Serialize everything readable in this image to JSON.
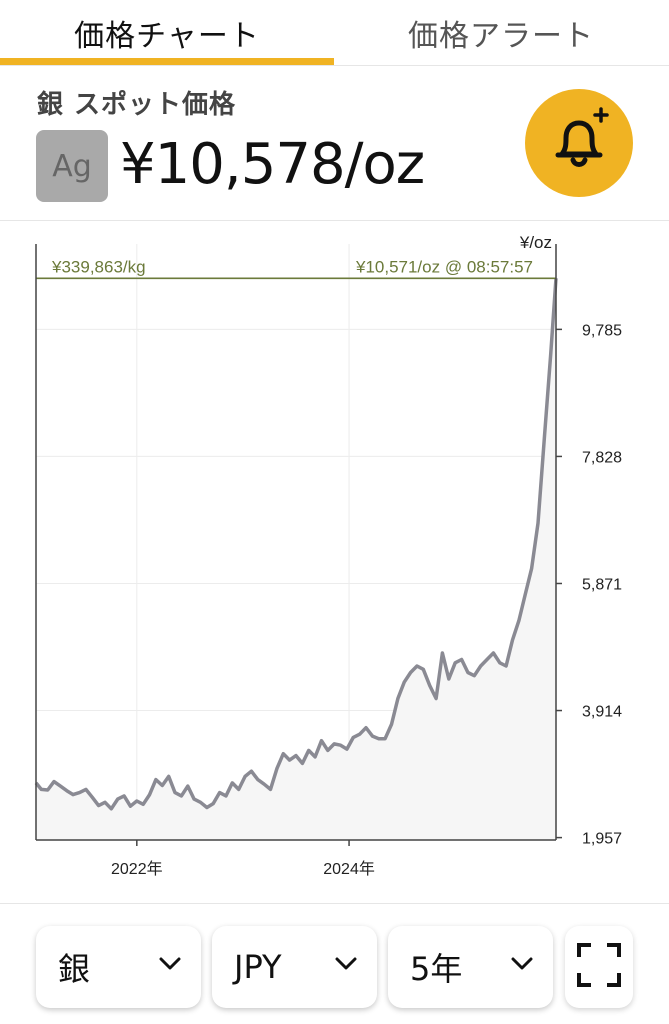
{
  "tabs": [
    {
      "label": "価格チャート",
      "active": true
    },
    {
      "label": "価格アラート",
      "active": false
    }
  ],
  "header": {
    "title": "銀 スポット価格",
    "symbol": "Ag",
    "price": "¥10,578/oz",
    "alert_icon": "bell-plus-icon"
  },
  "colors": {
    "accent": "#f0b323",
    "line": "#8a8a93",
    "ref_line": "#6b7a3a"
  },
  "chart": {
    "unit_label": "¥/oz",
    "ref_left": "¥339,863/kg",
    "ref_right": "¥10,571/oz @ 08:57:57"
  },
  "chart_data": {
    "type": "line",
    "y_ticks": [
      1957,
      3914,
      5871,
      7828,
      9785
    ],
    "y_tick_labels": [
      "1,957",
      "3,914",
      "5,871",
      "7,828",
      "9,785"
    ],
    "x_ticks": [
      2022,
      2024
    ],
    "x_tick_labels": [
      "2022年",
      "2024年"
    ],
    "ylim": [
      1920,
      11100
    ],
    "xlim": [
      2021.05,
      2025.95
    ],
    "reference_value": 10571,
    "grid": true,
    "series": [
      {
        "x": [
          2021.05,
          2021.1,
          2021.16,
          2021.22,
          2021.28,
          2021.34,
          2021.4,
          2021.46,
          2021.52,
          2021.58,
          2021.64,
          2021.7,
          2021.76,
          2021.82,
          2021.88,
          2021.94,
          2022.0,
          2022.06,
          2022.12,
          2022.18,
          2022.24,
          2022.3,
          2022.36,
          2022.42,
          2022.48,
          2022.54,
          2022.6,
          2022.66,
          2022.72,
          2022.78,
          2022.84,
          2022.9,
          2022.96,
          2023.02,
          2023.08,
          2023.14,
          2023.2,
          2023.26,
          2023.32,
          2023.38,
          2023.44,
          2023.5,
          2023.56,
          2023.62,
          2023.68,
          2023.74,
          2023.8,
          2023.86,
          2023.92,
          2023.98,
          2024.04,
          2024.1,
          2024.16,
          2024.22,
          2024.28,
          2024.34,
          2024.4,
          2024.46,
          2024.52,
          2024.58,
          2024.64,
          2024.7,
          2024.76,
          2024.82,
          2024.88,
          2024.94,
          2025.0,
          2025.06,
          2025.12,
          2025.18,
          2025.24,
          2025.3,
          2025.36,
          2025.42,
          2025.48,
          2025.54,
          2025.6,
          2025.66,
          2025.72,
          2025.78,
          2025.84,
          2025.9,
          2025.95
        ],
        "y": [
          2800,
          2700,
          2690,
          2820,
          2750,
          2680,
          2620,
          2650,
          2700,
          2580,
          2450,
          2500,
          2400,
          2550,
          2600,
          2440,
          2520,
          2470,
          2620,
          2850,
          2760,
          2900,
          2650,
          2600,
          2750,
          2550,
          2500,
          2420,
          2480,
          2650,
          2600,
          2800,
          2700,
          2900,
          2980,
          2850,
          2780,
          2700,
          3020,
          3250,
          3150,
          3220,
          3100,
          3300,
          3200,
          3450,
          3300,
          3400,
          3380,
          3320,
          3500,
          3550,
          3650,
          3520,
          3480,
          3480,
          3700,
          4100,
          4350,
          4500,
          4600,
          4550,
          4300,
          4100,
          4800,
          4400,
          4650,
          4700,
          4500,
          4450,
          4600,
          4700,
          4800,
          4650,
          4600,
          5000,
          5300,
          5700,
          6100,
          6800,
          8100,
          9400,
          10571
        ]
      }
    ]
  },
  "controls": {
    "metal_value": "銀",
    "currency_value": "JPY",
    "range_value": "5年",
    "chevron_icon": "chevron-down-icon",
    "fullscreen_icon": "fullscreen-icon"
  }
}
